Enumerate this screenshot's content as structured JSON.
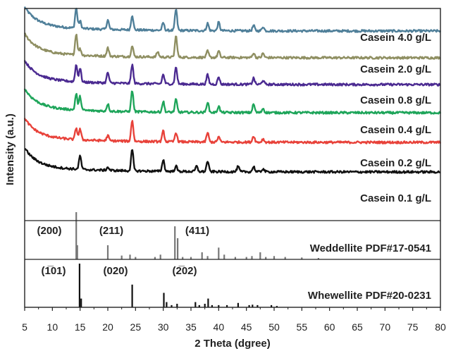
{
  "chart_data": {
    "type": "line",
    "title": "",
    "xlabel": "2 Theta (dgree)",
    "ylabel": "Intensity (a.u.)",
    "xlim": [
      5,
      80
    ],
    "xticks": [
      5,
      10,
      15,
      20,
      25,
      30,
      35,
      40,
      45,
      50,
      55,
      60,
      65,
      70,
      75,
      80
    ],
    "series": [
      {
        "name": "Casein 4.0 g/L",
        "color": "#4f7f99",
        "peaks": [
          [
            14.3,
            0.95
          ],
          [
            15.0,
            0.35
          ],
          [
            20.0,
            0.45
          ],
          [
            24.4,
            0.7
          ],
          [
            30.0,
            0.35
          ],
          [
            32.3,
            1.0
          ],
          [
            38.0,
            0.35
          ],
          [
            40.0,
            0.4
          ],
          [
            46.3,
            0.25
          ],
          [
            48.0,
            0.2
          ]
        ]
      },
      {
        "name": "Casein 2.0 g/L",
        "color": "#8f8f62",
        "peaks": [
          [
            14.3,
            1.0
          ],
          [
            15.0,
            0.3
          ],
          [
            20.0,
            0.4
          ],
          [
            24.4,
            0.5
          ],
          [
            29.0,
            0.25
          ],
          [
            32.3,
            1.0
          ],
          [
            38.0,
            0.3
          ],
          [
            40.0,
            0.3
          ],
          [
            46.3,
            0.22
          ],
          [
            48.0,
            0.2
          ]
        ]
      },
      {
        "name": "Casein 0.8 g/L",
        "color": "#4b2a91",
        "peaks": [
          [
            14.3,
            0.8
          ],
          [
            15.0,
            0.65
          ],
          [
            20.0,
            0.5
          ],
          [
            24.4,
            0.9
          ],
          [
            30.0,
            0.45
          ],
          [
            32.3,
            0.8
          ],
          [
            38.0,
            0.45
          ],
          [
            40.0,
            0.35
          ],
          [
            46.3,
            0.3
          ],
          [
            48.0,
            0.2
          ]
        ]
      },
      {
        "name": "Casein 0.4 g/L",
        "color": "#1ea55a",
        "peaks": [
          [
            14.3,
            0.75
          ],
          [
            15.0,
            0.65
          ],
          [
            20.0,
            0.35
          ],
          [
            24.4,
            1.0
          ],
          [
            30.0,
            0.5
          ],
          [
            32.3,
            0.6
          ],
          [
            38.0,
            0.5
          ],
          [
            40.0,
            0.3
          ],
          [
            46.3,
            0.4
          ],
          [
            48.0,
            0.2
          ]
        ]
      },
      {
        "name": "Casein 0.2 g/L",
        "color": "#e8423a",
        "peaks": [
          [
            14.3,
            0.55
          ],
          [
            15.0,
            0.5
          ],
          [
            20.0,
            0.25
          ],
          [
            24.4,
            1.0
          ],
          [
            30.0,
            0.5
          ],
          [
            32.3,
            0.45
          ],
          [
            38.0,
            0.45
          ],
          [
            40.0,
            0.25
          ],
          [
            46.3,
            0.3
          ],
          [
            48.0,
            0.15
          ]
        ]
      },
      {
        "name": "Casein 0.1 g/L",
        "color": "#111111",
        "peaks": [
          [
            15.0,
            0.65
          ],
          [
            20.0,
            0.15
          ],
          [
            24.4,
            1.0
          ],
          [
            30.0,
            0.55
          ],
          [
            32.3,
            0.25
          ],
          [
            36.0,
            0.25
          ],
          [
            38.0,
            0.5
          ],
          [
            43.5,
            0.25
          ],
          [
            46.3,
            0.25
          ],
          [
            48.0,
            0.15
          ]
        ]
      }
    ],
    "references": [
      {
        "name": "Weddellite PDF#17-0541",
        "color": "#777777",
        "lines": [
          [
            14.3,
            1.0
          ],
          [
            14.5,
            0.3
          ],
          [
            20.0,
            0.3
          ],
          [
            22.5,
            0.08
          ],
          [
            24.0,
            0.1
          ],
          [
            25.0,
            0.05
          ],
          [
            28.5,
            0.05
          ],
          [
            29.5,
            0.1
          ],
          [
            32.1,
            0.7
          ],
          [
            32.6,
            0.45
          ],
          [
            33.5,
            0.05
          ],
          [
            35.0,
            0.05
          ],
          [
            37.0,
            0.15
          ],
          [
            38.0,
            0.07
          ],
          [
            40.0,
            0.25
          ],
          [
            41.0,
            0.1
          ],
          [
            43.0,
            0.05
          ],
          [
            45.0,
            0.05
          ],
          [
            46.0,
            0.07
          ],
          [
            47.5,
            0.15
          ],
          [
            48.5,
            0.05
          ],
          [
            50.0,
            0.07
          ],
          [
            52.0,
            0.05
          ],
          [
            55.0,
            0.04
          ],
          [
            58.0,
            0.03
          ]
        ],
        "peak_labels": [
          {
            "text": "(200)",
            "x": 14.3
          },
          {
            "text": "(211)",
            "x": 20.0
          },
          {
            "text": "(411)",
            "x": 32.3
          }
        ]
      },
      {
        "name": "Whewellite PDF#20-0231",
        "color": "#111111",
        "lines": [
          [
            14.9,
            1.0
          ],
          [
            15.2,
            0.2
          ],
          [
            24.4,
            0.52
          ],
          [
            30.1,
            0.33
          ],
          [
            30.6,
            0.12
          ],
          [
            31.5,
            0.05
          ],
          [
            32.5,
            0.08
          ],
          [
            35.8,
            0.12
          ],
          [
            36.5,
            0.05
          ],
          [
            37.5,
            0.08
          ],
          [
            38.1,
            0.2
          ],
          [
            38.8,
            0.05
          ],
          [
            40.0,
            0.05
          ],
          [
            41.5,
            0.05
          ],
          [
            43.5,
            0.1
          ],
          [
            45.5,
            0.05
          ],
          [
            46.1,
            0.06
          ],
          [
            47.0,
            0.05
          ],
          [
            49.5,
            0.05
          ],
          [
            50.5,
            0.03
          ]
        ],
        "peak_labels": [
          {
            "text": "(1̅01)",
            "x": 15.0
          },
          {
            "text": "(020)",
            "x": 24.4
          },
          {
            "text": "(2̅02)",
            "x": 30.1
          }
        ]
      }
    ]
  }
}
